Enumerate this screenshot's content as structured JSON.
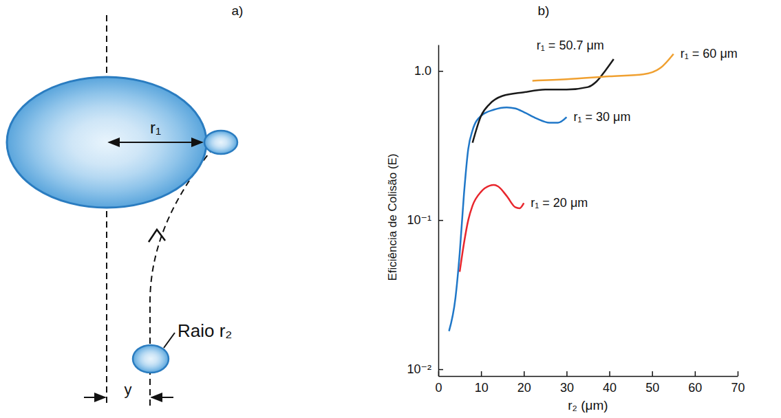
{
  "diagram": {
    "panel_label": "a)",
    "r1_label": "r₁",
    "r2_label": "Raio r₂",
    "y_label": "y"
  },
  "chart_data": {
    "type": "line",
    "panel_label": "b)",
    "x_label": "r₂ (μm)",
    "y_label": "Eficiência de Colisão (E)",
    "log": "y",
    "xlim": [
      0,
      70
    ],
    "xticks": [
      0,
      10,
      20,
      30,
      40,
      50,
      60,
      70
    ],
    "ylim": [
      0.009,
      1.5
    ],
    "yticks": [
      {
        "value": 0.01,
        "label": "10⁻²"
      },
      {
        "value": 0.1,
        "label": "10⁻¹"
      },
      {
        "value": 1,
        "label": "1.0"
      }
    ],
    "series": [
      {
        "name": "r₁ = 20 μm",
        "color": "#e8262d",
        "x": [
          5,
          6,
          7,
          8,
          10,
          12,
          13,
          14,
          16,
          18,
          19,
          20
        ],
        "values": [
          0.045,
          0.07,
          0.1,
          0.125,
          0.155,
          0.17,
          0.172,
          0.168,
          0.145,
          0.122,
          0.12,
          0.13
        ]
      },
      {
        "name": "r₁ = 30 μm",
        "color": "#1f77c8",
        "x": [
          2.5,
          4,
          5,
          6,
          7,
          8,
          10,
          13,
          16,
          18,
          20,
          23,
          26,
          28,
          30
        ],
        "values": [
          0.018,
          0.03,
          0.06,
          0.15,
          0.3,
          0.4,
          0.5,
          0.55,
          0.57,
          0.56,
          0.53,
          0.48,
          0.45,
          0.45,
          0.49
        ]
      },
      {
        "name": "r₁ = 50.7 μm",
        "color": "#1a1a1a",
        "x": [
          8,
          10,
          12,
          15,
          20,
          25,
          30,
          35,
          37,
          39,
          41
        ],
        "values": [
          0.33,
          0.5,
          0.6,
          0.68,
          0.72,
          0.75,
          0.75,
          0.78,
          0.85,
          1.0,
          1.2
        ]
      },
      {
        "name": "r₁ = 60 μm",
        "color": "#f0a030",
        "x": [
          22,
          30,
          40,
          48,
          52,
          55
        ],
        "values": [
          0.86,
          0.88,
          0.92,
          0.95,
          1.05,
          1.3
        ]
      }
    ]
  }
}
